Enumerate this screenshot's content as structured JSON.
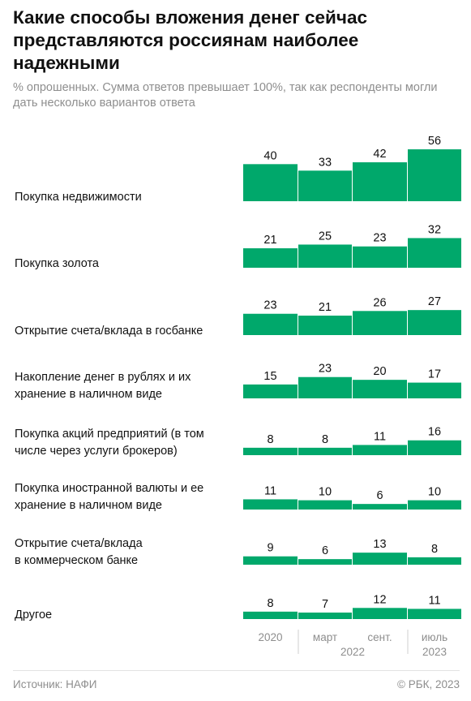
{
  "header": {
    "title": "Какие способы вложения денег сейчас представляются россиянам наиболее надежными",
    "subtitle": "% опрошенных. Сумма ответов превышает 100%, так как респонденты могли дать несколько вариантов ответа"
  },
  "footer": {
    "source": "Источник: НАФИ",
    "copyright": "© РБК, 2023"
  },
  "colors": {
    "bar": "#00a86b",
    "separator": "#cfcfcf",
    "muted": "#8e8e8e"
  },
  "chart_data": {
    "type": "bar",
    "periods": [
      "2020",
      "март 2022",
      "сент. 2022",
      "июль 2023"
    ],
    "x_axis": {
      "tick_labels": [
        "2020",
        "март",
        "сент.",
        "июль"
      ],
      "group_labels": [
        "2022",
        "2023"
      ]
    },
    "categories": [
      {
        "label_lines": [
          "Покупка недвижимости"
        ],
        "values": [
          40,
          33,
          42,
          56
        ]
      },
      {
        "label_lines": [
          "Покупка золота"
        ],
        "values": [
          21,
          25,
          23,
          32
        ]
      },
      {
        "label_lines": [
          "Открытие счета/вклада в госбанке"
        ],
        "values": [
          23,
          21,
          26,
          27
        ]
      },
      {
        "label_lines": [
          "Накопление денег в рублях и их",
          "хранение в наличном виде"
        ],
        "values": [
          15,
          23,
          20,
          17
        ]
      },
      {
        "label_lines": [
          "Покупка акций предприятий (в том",
          "числе через услуги брокеров)"
        ],
        "values": [
          8,
          8,
          11,
          16
        ]
      },
      {
        "label_lines": [
          "Покупка иностранной валюты и ее",
          "хранение в наличном виде"
        ],
        "values": [
          11,
          10,
          6,
          10
        ]
      },
      {
        "label_lines": [
          "Открытие счета/вклада",
          "в коммерческом банке"
        ],
        "values": [
          9,
          6,
          13,
          8
        ]
      },
      {
        "label_lines": [
          "Другое"
        ],
        "values": [
          8,
          7,
          12,
          11
        ]
      }
    ],
    "grid": false,
    "legend": "none"
  }
}
